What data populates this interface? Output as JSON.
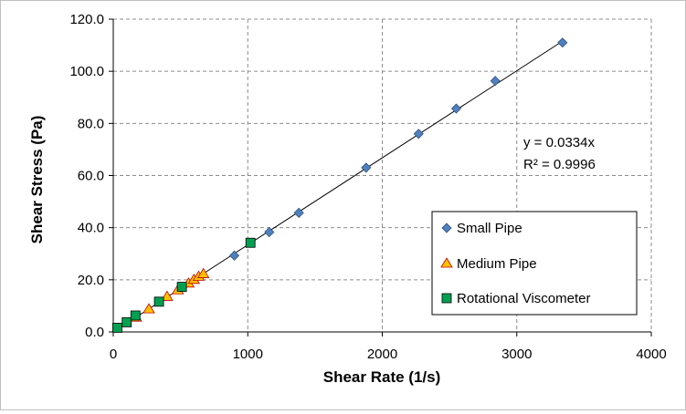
{
  "chart_data": {
    "type": "scatter",
    "xlabel": "Shear Rate (1/s)",
    "ylabel": "Shear Stress (Pa)",
    "xlim": [
      0,
      4000
    ],
    "ylim": [
      0,
      120
    ],
    "x_ticks": [
      "0",
      "1000",
      "2000",
      "3000",
      "4000"
    ],
    "y_ticks": [
      "0.0",
      "20.0",
      "40.0",
      "60.0",
      "80.0",
      "100.0",
      "120.0"
    ],
    "grid": "dashed",
    "legend_position": "bottom-right",
    "annotations": [
      "y = 0.0334x",
      "R² = 0.9996"
    ],
    "trendline": {
      "slope": 0.0334,
      "x_range": [
        0,
        3340
      ]
    },
    "series": [
      {
        "name": "Small Pipe",
        "marker": "diamond",
        "color": "#4f81bd",
        "x": [
          900,
          1160,
          1380,
          1880,
          2270,
          2550,
          2840,
          3340
        ],
        "y": [
          29.3,
          38.3,
          45.7,
          63.0,
          76.0,
          85.7,
          96.3,
          111.0
        ]
      },
      {
        "name": "Medium Pipe",
        "marker": "triangle",
        "color": "#ffc000",
        "x": [
          170,
          265,
          400,
          480,
          560,
          600,
          635,
          670
        ],
        "y": [
          5.5,
          8.7,
          13.5,
          16.0,
          18.6,
          20.0,
          21.2,
          22.2
        ]
      },
      {
        "name": "Rotational Viscometer",
        "marker": "square",
        "color": "#00a050",
        "x": [
          30,
          100,
          165,
          340,
          510,
          1020
        ],
        "y": [
          1.6,
          3.7,
          6.3,
          11.6,
          17.3,
          34.2
        ]
      }
    ]
  }
}
